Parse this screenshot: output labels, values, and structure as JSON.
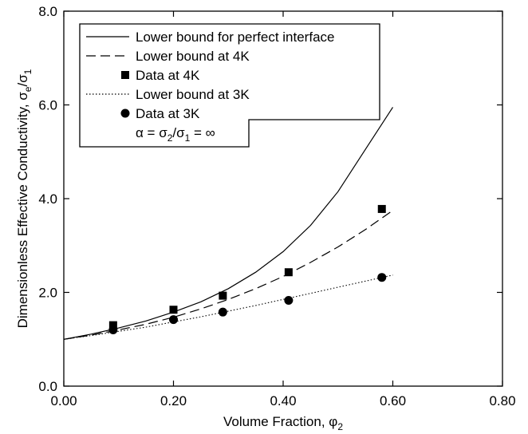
{
  "chart_data": {
    "type": "line",
    "xlabel": "Volume Fraction, φ",
    "xlabel_sub": "2",
    "ylabel": "Dimensionless Effective Conductivity, σ",
    "ylabel_sub": "e",
    "ylabel_mid": "/σ",
    "ylabel_sub2": "1",
    "xlim": [
      0.0,
      0.8
    ],
    "ylim": [
      0.0,
      8.0
    ],
    "x_ticks": [
      "0.00",
      "0.20",
      "0.40",
      "0.60",
      "0.80"
    ],
    "y_ticks": [
      "0.0",
      "2.0",
      "4.0",
      "6.0",
      "8.0"
    ],
    "grid": false,
    "legend_position": "top-left",
    "series": [
      {
        "name": "Lower bound for perfect interface",
        "kind": "line",
        "style": "solid",
        "x": [
          0.0,
          0.05,
          0.1,
          0.15,
          0.2,
          0.25,
          0.3,
          0.35,
          0.4,
          0.45,
          0.5,
          0.55,
          0.6
        ],
        "values": [
          1.0,
          1.11,
          1.24,
          1.39,
          1.58,
          1.8,
          2.08,
          2.43,
          2.87,
          3.43,
          4.15,
          5.05,
          5.95
        ]
      },
      {
        "name": "Lower bound at 4K",
        "kind": "line",
        "style": "dashed",
        "x": [
          0.0,
          0.05,
          0.1,
          0.15,
          0.2,
          0.25,
          0.3,
          0.35,
          0.4,
          0.45,
          0.5,
          0.55,
          0.6
        ],
        "values": [
          1.0,
          1.09,
          1.2,
          1.32,
          1.47,
          1.65,
          1.85,
          2.08,
          2.34,
          2.64,
          2.97,
          3.34,
          3.75
        ]
      },
      {
        "name": "Data at 4K",
        "kind": "scatter",
        "marker": "square",
        "x": [
          0.09,
          0.2,
          0.29,
          0.41,
          0.58
        ],
        "values": [
          1.3,
          1.63,
          1.93,
          2.43,
          3.78
        ]
      },
      {
        "name": "Lower bound at 3K",
        "kind": "line",
        "style": "dotted",
        "x": [
          0.0,
          0.05,
          0.1,
          0.15,
          0.2,
          0.25,
          0.3,
          0.35,
          0.4,
          0.45,
          0.5,
          0.55,
          0.6
        ],
        "values": [
          1.0,
          1.08,
          1.17,
          1.26,
          1.37,
          1.48,
          1.6,
          1.72,
          1.85,
          1.98,
          2.11,
          2.24,
          2.37
        ]
      },
      {
        "name": "Data at 3K",
        "kind": "scatter",
        "marker": "circle",
        "x": [
          0.09,
          0.2,
          0.29,
          0.41,
          0.58
        ],
        "values": [
          1.2,
          1.42,
          1.58,
          1.83,
          2.32
        ]
      }
    ],
    "legend_note": {
      "prefix": "α = σ",
      "sub1": "2",
      "mid": "/σ",
      "sub2": "1",
      "suffix": " = ∞"
    }
  }
}
